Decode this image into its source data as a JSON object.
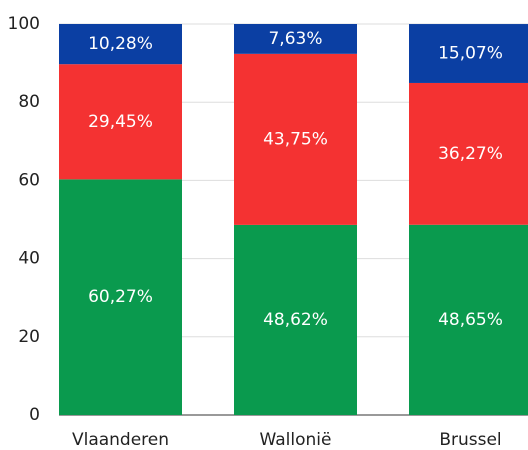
{
  "chart_data": {
    "type": "stacked_bar",
    "categories": [
      "Vlaanderen",
      "Wallonië",
      "Brussel"
    ],
    "series": [
      {
        "color": "#0a9a4e",
        "values": [
          60.27,
          48.62,
          48.65
        ],
        "value_labels": [
          "60,27%",
          "48,62%",
          "48,65%"
        ]
      },
      {
        "color": "#f43232",
        "values": [
          29.45,
          43.75,
          36.27
        ],
        "value_labels": [
          "29,45%",
          "43,75%",
          "36,27%"
        ]
      },
      {
        "color": "#0b3fa3",
        "values": [
          10.28,
          7.63,
          15.07
        ],
        "value_labels": [
          "10,28%",
          "7,63%",
          "15,07%"
        ]
      }
    ],
    "ylim": [
      0,
      100
    ],
    "yticks": [
      0,
      20,
      40,
      60,
      80,
      100
    ],
    "grid": true
  }
}
